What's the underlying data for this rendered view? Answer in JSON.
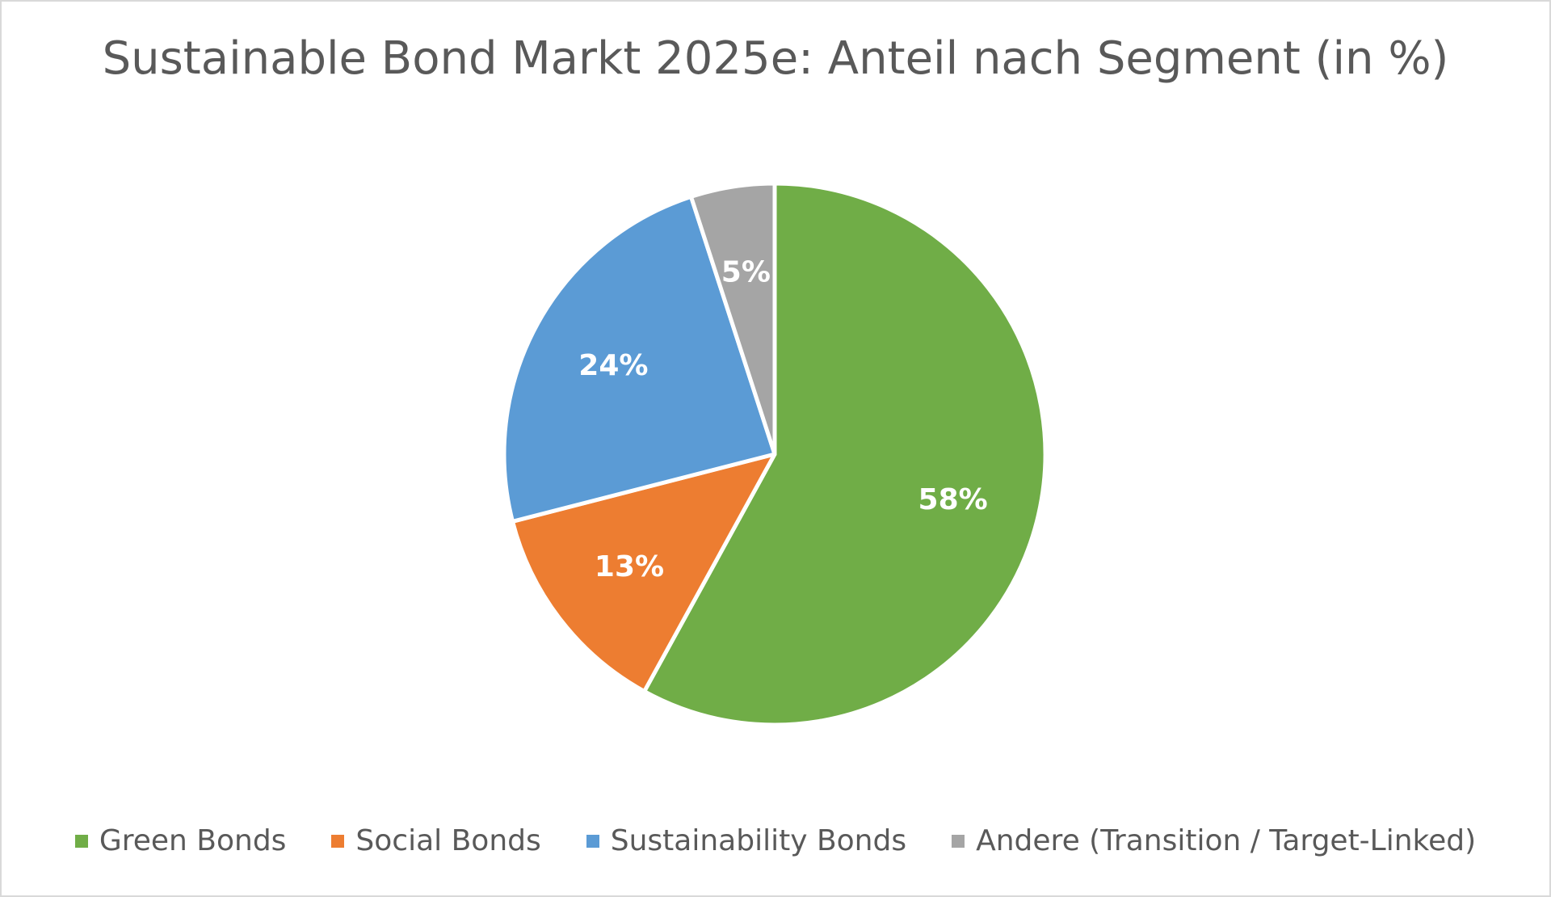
{
  "chart_data": {
    "type": "pie",
    "title": "Sustainable Bond Markt 2025e: Anteil nach Segment (in %)",
    "categories": [
      "Green Bonds",
      "Social Bonds",
      "Sustainability Bonds",
      "Andere (Transition / Target-Linked)"
    ],
    "values": [
      58,
      13,
      24,
      5
    ],
    "data_labels": [
      "58%",
      "13%",
      "24%",
      "5%"
    ],
    "colors": [
      "#70ad47",
      "#ed7d31",
      "#5b9bd5",
      "#a5a5a5"
    ],
    "legend_position": "bottom",
    "start_angle": "12 o'clock",
    "direction": "clockwise"
  }
}
